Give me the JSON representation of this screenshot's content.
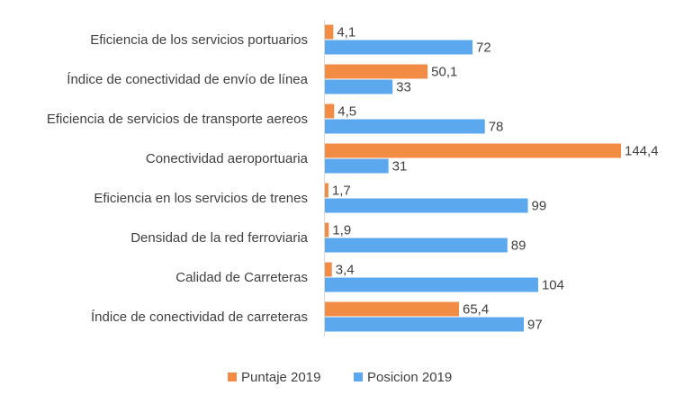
{
  "chart_data": {
    "type": "bar",
    "orientation": "horizontal",
    "title": "",
    "xlabel": "",
    "ylabel": "",
    "grid": false,
    "legend_position": "bottom",
    "categories": [
      "Eficiencia de los servicios portuarios",
      "Índice de conectividad de envío de línea",
      "Eficiencia de servicios de transporte aereos",
      "Conectividad aeroportuaria",
      "Eficiencia en los servicios de trenes",
      "Densidad de la red ferroviaria",
      "Calidad de Carreteras",
      "Índice de conectividad de carreteras"
    ],
    "series": [
      {
        "name": "Puntaje 2019",
        "color": "#F28C45",
        "values": [
          4.1,
          50.1,
          4.5,
          144.4,
          1.7,
          1.9,
          3.4,
          65.4
        ],
        "labels": [
          "4,1",
          "50,1",
          "4,5",
          "144,4",
          "1,7",
          "1,9",
          "3,4",
          "65,4"
        ]
      },
      {
        "name": "Posicion 2019",
        "color": "#5CA8EE",
        "values": [
          72,
          33,
          78,
          31,
          99,
          89,
          104,
          97
        ],
        "labels": [
          "72",
          "33",
          "78",
          "31",
          "99",
          "89",
          "104",
          "97"
        ]
      }
    ],
    "xlim": [
      0,
      150
    ]
  }
}
